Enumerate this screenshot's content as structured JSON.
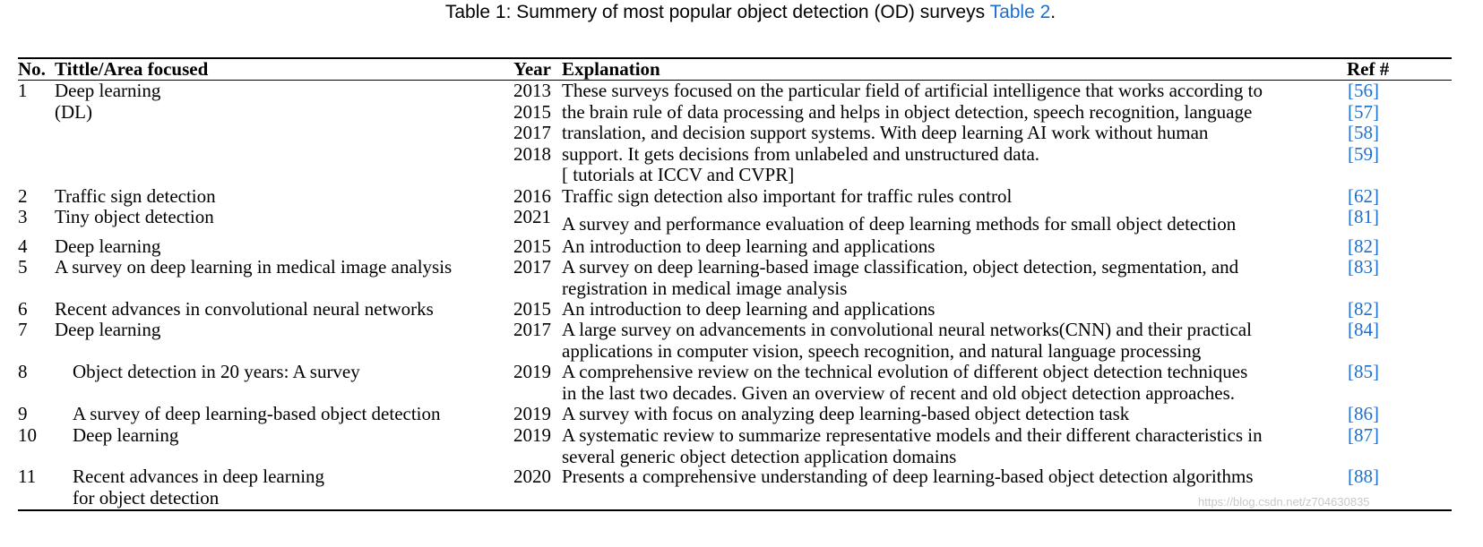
{
  "caption": {
    "text": "Table 1: Summery of most popular object detection (OD) surveys ",
    "link": "Table 2",
    "suffix": "."
  },
  "table": {
    "headers": {
      "no": "No.",
      "title": "Tittle/Area focused",
      "year": "Year",
      "explanation": "Explanation",
      "ref": "Ref #"
    },
    "rows": [
      {
        "no": "1",
        "title": [
          "Deep learning",
          "(DL)"
        ],
        "years": [
          "2013",
          "2015",
          "2017",
          "2018"
        ],
        "explanation": [
          "These surveys focused on the particular field of artificial intelligence that works according to",
          "the brain rule of data processing and helps in object detection, speech recognition, language",
          "translation, and decision support systems. With deep learning AI work without human",
          "support. It gets decisions from unlabeled and unstructured data.",
          "[ tutorials at ICCV and CVPR]"
        ],
        "refs": [
          "[56]",
          "[57]",
          "[58]",
          "[59]"
        ]
      },
      {
        "no": "2",
        "title": [
          "Traffic sign detection"
        ],
        "years": [
          "2016"
        ],
        "explanation": [
          "Traffic sign detection also important for traffic rules control"
        ],
        "refs": [
          "[62]"
        ]
      },
      {
        "no": "3",
        "title": [
          "Tiny object detection"
        ],
        "years": [
          "2021"
        ],
        "explanation": [
          "A survey and performance evaluation of deep learning methods for small object detection"
        ],
        "refs": [
          "[81]"
        ]
      },
      {
        "no": "4",
        "title": [
          "Deep learning"
        ],
        "years": [
          "2015"
        ],
        "explanation": [
          "An introduction to deep learning and applications"
        ],
        "refs": [
          "[82]"
        ]
      },
      {
        "no": "5",
        "title": [
          "A survey on deep learning in medical image analysis"
        ],
        "years": [
          "2017"
        ],
        "explanation": [
          "A survey on deep learning-based image classification, object detection, segmentation, and",
          "registration in medical image analysis"
        ],
        "refs": [
          "[83]"
        ]
      },
      {
        "no": "6",
        "title": [
          "Recent advances in convolutional neural networks"
        ],
        "years": [
          "2015"
        ],
        "explanation": [
          "An introduction to deep learning and applications"
        ],
        "refs": [
          "[82]"
        ]
      },
      {
        "no": "7",
        "title": [
          "Deep learning"
        ],
        "years": [
          "2017"
        ],
        "explanation": [
          "A large survey on advancements in convolutional neural networks(CNN) and their practical",
          "applications in computer vision, speech recognition, and natural language processing"
        ],
        "refs": [
          "[84]"
        ]
      },
      {
        "no": "8",
        "title": [
          "Object detection in 20 years: A survey"
        ],
        "years": [
          "2019"
        ],
        "explanation": [
          "A comprehensive review on the technical evolution of different object detection techniques",
          "in the last two decades. Given an overview of recent and old object detection approaches."
        ],
        "refs": [
          "[85]"
        ]
      },
      {
        "no": "9",
        "title": [
          "A survey of deep learning-based object detection"
        ],
        "years": [
          "2019"
        ],
        "explanation": [
          "A survey with focus on analyzing deep learning-based object detection task"
        ],
        "refs": [
          "[86]"
        ]
      },
      {
        "no": "10",
        "title": [
          "Deep learning"
        ],
        "years": [
          "2019"
        ],
        "explanation": [
          "A systematic review to summarize representative models and their different characteristics in",
          "several generic object detection application domains"
        ],
        "refs": [
          "[87]"
        ]
      },
      {
        "no": "11",
        "title": [
          "Recent advances in deep learning",
          "for object detection"
        ],
        "years": [
          "2020"
        ],
        "explanation": [
          "Presents a comprehensive understanding of deep learning-based object detection algorithms"
        ],
        "refs": [
          "[88]"
        ]
      }
    ]
  },
  "watermark": "https://blog.csdn.net/z704630835"
}
